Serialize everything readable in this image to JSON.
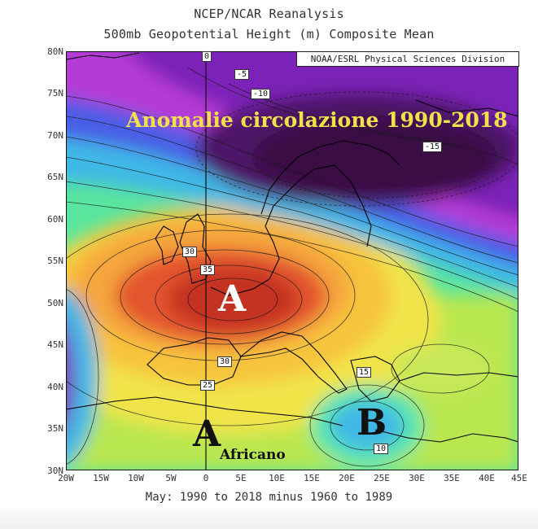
{
  "title_line1": "NCEP/NCAR Reanalysis",
  "title_line2": "500mb Geopotential Height (m) Composite Mean",
  "subtitle": "May: 1990 to 2018 minus 1960 to 1989",
  "credit": "NOAA/ESRL Physical Sciences Division",
  "annotations": {
    "headline": "Anomalie circolazione  1990-2018",
    "high_main": "A",
    "high_africa": "A",
    "africano": "Africano",
    "low": "B"
  },
  "lat_labels": [
    "80N",
    "75N",
    "70N",
    "65N",
    "60N",
    "55N",
    "50N",
    "45N",
    "40N",
    "35N",
    "30N"
  ],
  "lon_labels": [
    "20W",
    "15W",
    "10W",
    "5W",
    "0",
    "5E",
    "10E",
    "15E",
    "20E",
    "25E",
    "30E",
    "35E",
    "40E",
    "45E"
  ],
  "contour_labels": [
    "0",
    "-5",
    "-10",
    "-15",
    "30",
    "35",
    "30",
    "25",
    "15",
    "10"
  ],
  "colors": {
    "deep_purple": "#3a0a44",
    "purple": "#7b22b8",
    "magenta": "#b53ad6",
    "blue": "#4a5de6",
    "cyan": "#3fb8e6",
    "green": "#59e59f",
    "light_green": "#9de85a",
    "yellow": "#f1e44a",
    "orange": "#f5a63d",
    "red": "#e3552e",
    "dark_red": "#c43320",
    "headline": "#f2e14a"
  }
}
